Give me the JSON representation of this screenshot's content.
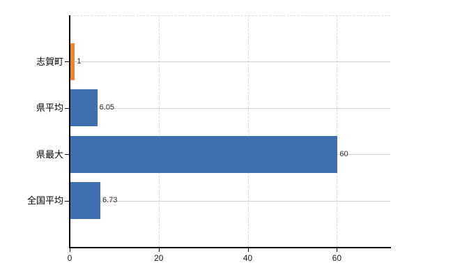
{
  "chart_data": {
    "type": "bar",
    "orientation": "horizontal",
    "title": "",
    "xlabel": "",
    "ylabel": "",
    "categories": [
      "志賀町",
      "県平均",
      "県最大",
      "全国平均"
    ],
    "values": [
      1,
      6.05,
      60,
      6.73
    ],
    "value_labels": [
      "1",
      "6.05",
      "60",
      "6.73"
    ],
    "bar_colors": [
      "#ef8628",
      "#3e6fae",
      "#3e6fae",
      "#3e6fae"
    ],
    "x_ticks": [
      0,
      20,
      40,
      60
    ],
    "x_tick_labels": [
      "0",
      "20",
      "40",
      "60"
    ],
    "xlim": [
      0,
      72
    ],
    "grid": true,
    "legend": "none"
  },
  "colors": {
    "axis": "#000000",
    "vertical_gridline": "#dadada",
    "horizontal_gridline": "#ccd7cc",
    "bar_blue": "#3e6fae",
    "bar_orange": "#ef8628",
    "value_label": "#2b2b2b",
    "tick_label": "#1a1a1a",
    "background": "#ffffff"
  }
}
